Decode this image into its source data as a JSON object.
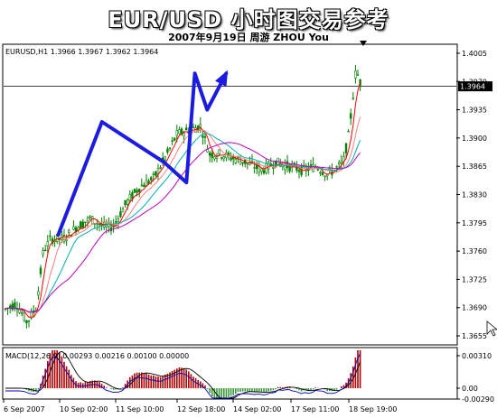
{
  "header": {
    "title": "EUR/USD  小时图交易参考",
    "subtitle": "2007年9月19日    周游 ZHOU You"
  },
  "chart_data": [
    {
      "type": "candlestick",
      "symbol_label": "EURUSD,H1  1.3966 1.3967 1.3962 1.3964",
      "price_label": "1.3964",
      "y_ticks": [
        "1.4005",
        "1.3970",
        "1.3935",
        "1.3900",
        "1.3865",
        "1.3830",
        "1.3795",
        "1.3760",
        "1.3725",
        "1.3690",
        "1.3655"
      ],
      "ylim": [
        1.3645,
        1.4015
      ],
      "x_ticks": [
        "6 Sep 2007",
        "10 Sep 02:00",
        "11 Sep 10:00",
        "12 Sep 18:00",
        "14 Sep 02:00",
        "17 Sep 11:00",
        "18 Sep 19:00"
      ],
      "current_price": 1.3964,
      "guide_line": {
        "x": [
          0.117,
          0.205,
          0.33,
          0.375,
          0.392,
          0.417,
          0.455
        ],
        "y": [
          1.378,
          1.392,
          1.387,
          1.3845,
          1.398,
          1.3935,
          1.398
        ]
      }
    },
    {
      "type": "bar",
      "indicator_label": "MACD(12,26,9) 0.00293 0.00216 0.00100 0.00000",
      "y_ticks": [
        "0.00310",
        "0.00",
        "-0.00290"
      ],
      "ylim": [
        -0.0029,
        0.0031
      ]
    }
  ],
  "colors": {
    "candles": "#008000",
    "guide": "#1c1ce0",
    "ma_fast": "#ff0000",
    "ma_mid": "#ff8080",
    "ma_teal": "#00b0b0",
    "ma_slow": "#c000c0",
    "macd_hist": "#b00000",
    "macd_signal": "#0000c0"
  }
}
